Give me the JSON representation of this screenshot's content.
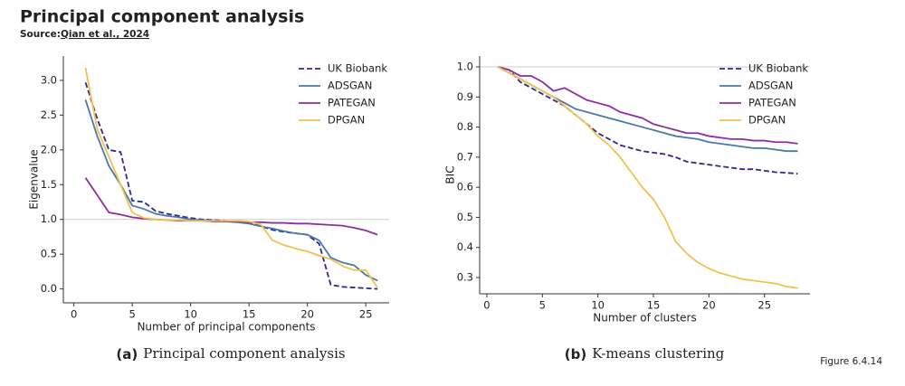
{
  "header": {
    "title": "Principal component analysis",
    "source_prefix": "Source:",
    "source_link": "Qian et al., 2024"
  },
  "figure_label": "Figure 6.4.14",
  "chart_data": [
    {
      "type": "line",
      "caption_label": "(a)",
      "caption": "Principal component analysis",
      "x_label": "Number of principal components",
      "y_label": "Eigenvalue",
      "x": [
        1,
        2,
        3,
        4,
        5,
        6,
        7,
        8,
        9,
        10,
        11,
        12,
        13,
        14,
        15,
        16,
        17,
        18,
        19,
        20,
        21,
        22,
        23,
        24,
        25,
        26
      ],
      "series": [
        {
          "name": "UK Biobank",
          "color": "#2b2b8c",
          "dashed": true,
          "values": [
            2.97,
            2.45,
            2.0,
            1.97,
            1.27,
            1.25,
            1.12,
            1.08,
            1.05,
            1.02,
            1.0,
            0.99,
            0.98,
            0.97,
            0.96,
            0.9,
            0.85,
            0.82,
            0.8,
            0.78,
            0.65,
            0.06,
            0.03,
            0.02,
            0.01,
            0.0
          ]
        },
        {
          "name": "ADSGAN",
          "color": "#4a7aa5",
          "dashed": false,
          "values": [
            2.72,
            2.2,
            1.77,
            1.5,
            1.2,
            1.15,
            1.08,
            1.05,
            1.03,
            1.0,
            0.99,
            0.98,
            0.97,
            0.96,
            0.94,
            0.9,
            0.87,
            0.83,
            0.8,
            0.78,
            0.7,
            0.45,
            0.38,
            0.34,
            0.2,
            0.12
          ]
        },
        {
          "name": "PATEGAN",
          "color": "#8e2e9e",
          "dashed": false,
          "values": [
            1.6,
            1.35,
            1.1,
            1.07,
            1.03,
            1.01,
            1.0,
            0.99,
            0.98,
            0.98,
            0.98,
            0.97,
            0.97,
            0.97,
            0.96,
            0.96,
            0.95,
            0.95,
            0.94,
            0.94,
            0.93,
            0.92,
            0.91,
            0.88,
            0.84,
            0.78
          ]
        },
        {
          "name": "DPGAN",
          "color": "#f2c14e",
          "dashed": false,
          "values": [
            3.18,
            2.3,
            1.9,
            1.5,
            1.1,
            1.02,
            1.0,
            0.99,
            0.99,
            0.98,
            0.98,
            0.98,
            0.98,
            0.98,
            0.97,
            0.93,
            0.7,
            0.63,
            0.58,
            0.54,
            0.48,
            0.43,
            0.33,
            0.27,
            0.27,
            0.02
          ]
        }
      ],
      "xlim": [
        -0.9,
        27
      ],
      "ylim": [
        -0.2,
        3.35
      ],
      "xticks": [
        0,
        5,
        10,
        15,
        20,
        25
      ],
      "yticks": [
        {
          "value": 0,
          "label": "0.0"
        },
        0.5,
        {
          "value": 1,
          "label": "1.0"
        },
        1.5,
        {
          "value": 2,
          "label": "2.0"
        },
        2.5,
        {
          "value": 3,
          "label": "3.0"
        }
      ],
      "hline": 1,
      "legend": "upper right",
      "grid": false
    },
    {
      "type": "line",
      "caption_label": "(b)",
      "caption": "K-means clustering",
      "x_label": "Number of clusters",
      "y_label": "BIC",
      "x": [
        1,
        2,
        3,
        4,
        5,
        6,
        7,
        8,
        9,
        10,
        11,
        12,
        13,
        14,
        15,
        16,
        17,
        18,
        19,
        20,
        21,
        22,
        23,
        24,
        25,
        26,
        27,
        28
      ],
      "series": [
        {
          "name": "UK Biobank",
          "color": "#2b2b8c",
          "dashed": true,
          "values": [
            1.0,
            0.99,
            0.95,
            0.93,
            0.91,
            0.89,
            0.87,
            0.84,
            0.81,
            0.78,
            0.76,
            0.74,
            0.73,
            0.72,
            0.715,
            0.71,
            0.7,
            0.685,
            0.68,
            0.675,
            0.67,
            0.665,
            0.66,
            0.66,
            0.655,
            0.65,
            0.648,
            0.645
          ]
        },
        {
          "name": "ADSGAN",
          "color": "#4a7aa5",
          "dashed": false,
          "values": [
            1.0,
            0.98,
            0.96,
            0.94,
            0.92,
            0.9,
            0.88,
            0.86,
            0.85,
            0.84,
            0.83,
            0.82,
            0.81,
            0.8,
            0.79,
            0.78,
            0.77,
            0.765,
            0.76,
            0.75,
            0.745,
            0.74,
            0.735,
            0.73,
            0.73,
            0.725,
            0.72,
            0.72
          ]
        },
        {
          "name": "PATEGAN",
          "color": "#8e2e9e",
          "dashed": false,
          "values": [
            1.0,
            0.99,
            0.97,
            0.97,
            0.95,
            0.92,
            0.93,
            0.91,
            0.89,
            0.88,
            0.87,
            0.85,
            0.84,
            0.83,
            0.81,
            0.8,
            0.79,
            0.78,
            0.78,
            0.77,
            0.765,
            0.76,
            0.76,
            0.755,
            0.755,
            0.75,
            0.75,
            0.745
          ]
        },
        {
          "name": "DPGAN",
          "color": "#f2c14e",
          "dashed": false,
          "values": [
            1.0,
            0.98,
            0.96,
            0.94,
            0.92,
            0.9,
            0.87,
            0.84,
            0.81,
            0.77,
            0.74,
            0.7,
            0.65,
            0.6,
            0.56,
            0.5,
            0.42,
            0.38,
            0.35,
            0.33,
            0.315,
            0.305,
            0.295,
            0.29,
            0.285,
            0.28,
            0.27,
            0.265
          ]
        }
      ],
      "xlim": [
        -0.65,
        29.1
      ],
      "ylim": [
        0.246,
        1.036
      ],
      "xticks": [
        0,
        5,
        10,
        15,
        20,
        25
      ],
      "yticks": [
        0.3,
        0.4,
        0.5,
        0.6,
        0.7,
        0.8,
        0.9,
        {
          "value": 1,
          "label": "1.0"
        }
      ],
      "hline": 1,
      "legend": "upper right",
      "grid": false
    }
  ]
}
